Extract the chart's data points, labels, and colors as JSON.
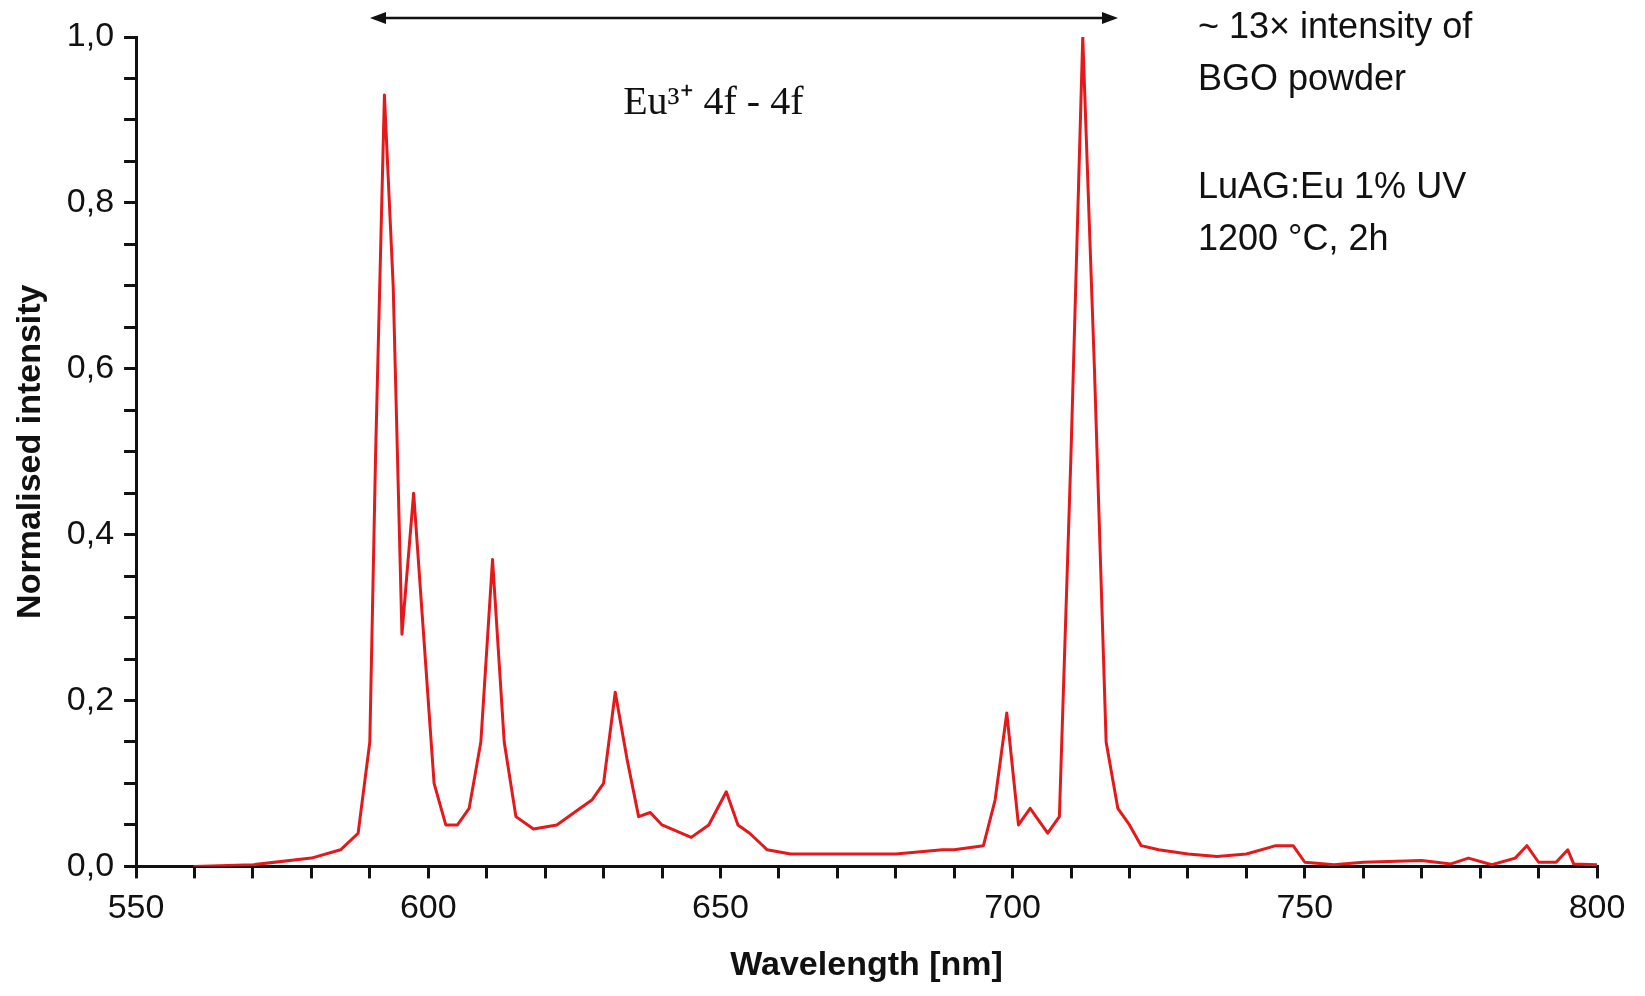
{
  "chart_data": {
    "type": "line",
    "xlabel": "Wavelength [nm]",
    "ylabel": "Normalised intensity",
    "x": [
      560,
      570,
      580,
      585,
      588,
      590,
      591,
      592.5,
      594,
      595.5,
      597.5,
      599,
      601,
      603,
      605,
      607,
      609,
      611,
      613,
      615,
      618,
      622,
      626,
      628,
      630,
      632,
      634,
      636,
      638,
      640,
      645,
      648,
      651,
      653,
      655,
      658,
      662,
      670,
      680,
      688,
      690,
      695,
      697,
      699,
      701,
      703,
      706,
      708,
      710,
      712,
      714,
      716,
      718,
      720,
      722,
      725,
      730,
      735,
      740,
      745,
      748,
      750,
      755,
      760,
      770,
      775,
      778,
      782,
      786,
      788,
      790,
      793,
      795,
      796,
      800
    ],
    "series": [
      {
        "color": "#e3191c",
        "values": [
          0.0,
          0.002,
          0.01,
          0.02,
          0.04,
          0.15,
          0.5,
          0.93,
          0.7,
          0.28,
          0.45,
          0.3,
          0.1,
          0.05,
          0.05,
          0.07,
          0.15,
          0.37,
          0.15,
          0.06,
          0.045,
          0.05,
          0.07,
          0.08,
          0.1,
          0.21,
          0.13,
          0.06,
          0.065,
          0.05,
          0.035,
          0.05,
          0.09,
          0.05,
          0.04,
          0.02,
          0.015,
          0.015,
          0.015,
          0.02,
          0.02,
          0.025,
          0.08,
          0.185,
          0.05,
          0.07,
          0.04,
          0.06,
          0.5,
          1.0,
          0.6,
          0.15,
          0.07,
          0.05,
          0.025,
          0.02,
          0.015,
          0.012,
          0.015,
          0.025,
          0.025,
          0.005,
          0.002,
          0.005,
          0.007,
          0.003,
          0.01,
          0.002,
          0.01,
          0.025,
          0.005,
          0.005,
          0.02,
          0.003,
          0.002
        ]
      }
    ],
    "xlim": [
      550,
      800
    ],
    "xticks": [
      550,
      {
        "value": 560,
        "label": null
      },
      {
        "value": 570,
        "label": null
      },
      {
        "value": 580,
        "label": null
      },
      {
        "value": 590,
        "label": null
      },
      600,
      {
        "value": 610,
        "label": null
      },
      {
        "value": 620,
        "label": null
      },
      {
        "value": 630,
        "label": null
      },
      {
        "value": 640,
        "label": null
      },
      650,
      {
        "value": 660,
        "label": null
      },
      {
        "value": 670,
        "label": null
      },
      {
        "value": 680,
        "label": null
      },
      {
        "value": 690,
        "label": null
      },
      700,
      {
        "value": 710,
        "label": null
      },
      {
        "value": 720,
        "label": null
      },
      {
        "value": 730,
        "label": null
      },
      {
        "value": 740,
        "label": null
      },
      750,
      {
        "value": 760,
        "label": null
      },
      {
        "value": 770,
        "label": null
      },
      {
        "value": 780,
        "label": null
      },
      {
        "value": 790,
        "label": null
      },
      800
    ],
    "ylim": [
      0,
      1
    ],
    "yticks": [
      {
        "value": 0,
        "label": "0,0"
      },
      {
        "value": 0.05,
        "label": null
      },
      {
        "value": 0.1,
        "label": null
      },
      {
        "value": 0.15,
        "label": null
      },
      {
        "value": 0.2,
        "label": "0,2"
      },
      {
        "value": 0.25,
        "label": null
      },
      {
        "value": 0.3,
        "label": null
      },
      {
        "value": 0.35,
        "label": null
      },
      {
        "value": 0.4,
        "label": "0,4"
      },
      {
        "value": 0.45,
        "label": null
      },
      {
        "value": 0.5,
        "label": null
      },
      {
        "value": 0.55,
        "label": null
      },
      {
        "value": 0.6,
        "label": "0,6"
      },
      {
        "value": 0.65,
        "label": null
      },
      {
        "value": 0.7,
        "label": null
      },
      {
        "value": 0.75,
        "label": null
      },
      {
        "value": 0.8,
        "label": "0,8"
      },
      {
        "value": 0.85,
        "label": null
      },
      {
        "value": 0.9,
        "label": null
      },
      {
        "value": 0.95,
        "label": null
      },
      {
        "value": 1,
        "label": "1,0"
      }
    ],
    "grid": false,
    "legend": false,
    "marker": "none",
    "line_style": "solid",
    "annotations": [
      "Eu³⁺ 4f - 4f",
      "~ 13× intensity of\nBGO powder",
      "LuAG:Eu 1% UV\n1200 °C, 2h"
    ]
  }
}
